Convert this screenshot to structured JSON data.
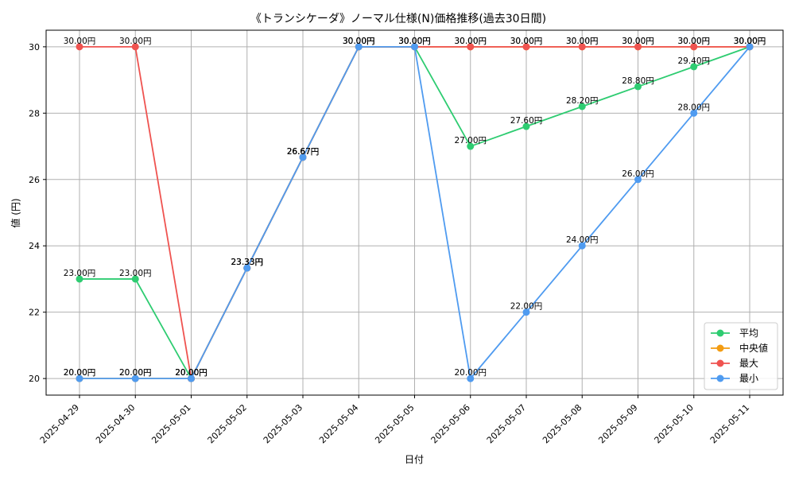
{
  "chart_data": {
    "type": "line",
    "title": "《トランシケーダ》ノーマル仕様(N)価格推移(過去30日間)",
    "xlabel": "日付",
    "ylabel": "値 (円)",
    "categories": [
      "2025-04-29",
      "2025-04-30",
      "2025-05-01",
      "2025-05-02",
      "2025-05-03",
      "2025-05-04",
      "2025-05-05",
      "2025-05-06",
      "2025-05-07",
      "2025-05-08",
      "2025-05-09",
      "2025-05-10",
      "2025-05-11"
    ],
    "ylim": [
      19.5,
      30.5
    ],
    "yticks": [
      20,
      22,
      24,
      26,
      28,
      30
    ],
    "grid": true,
    "legend_position": "lower-right",
    "value_suffix": "円",
    "series": [
      {
        "name": "平均",
        "color": "#2ecc71",
        "values": [
          23,
          23,
          20,
          23.33,
          26.67,
          30,
          30,
          27,
          27.6,
          28.2,
          28.8,
          29.4,
          30
        ]
      },
      {
        "name": "中央値",
        "color": "#f39c12",
        "values": [
          20,
          20,
          20,
          23.33,
          26.67,
          30,
          30,
          30,
          30,
          30,
          30,
          30,
          30
        ]
      },
      {
        "name": "最大",
        "color": "#ef5350",
        "values": [
          30,
          30,
          20,
          23.33,
          26.67,
          30,
          30,
          30,
          30,
          30,
          30,
          30,
          30
        ]
      },
      {
        "name": "最小",
        "color": "#4f9bf0",
        "values": [
          20,
          20,
          20,
          23.33,
          26.67,
          30,
          30,
          20,
          22,
          24,
          26,
          28,
          30
        ]
      }
    ]
  }
}
